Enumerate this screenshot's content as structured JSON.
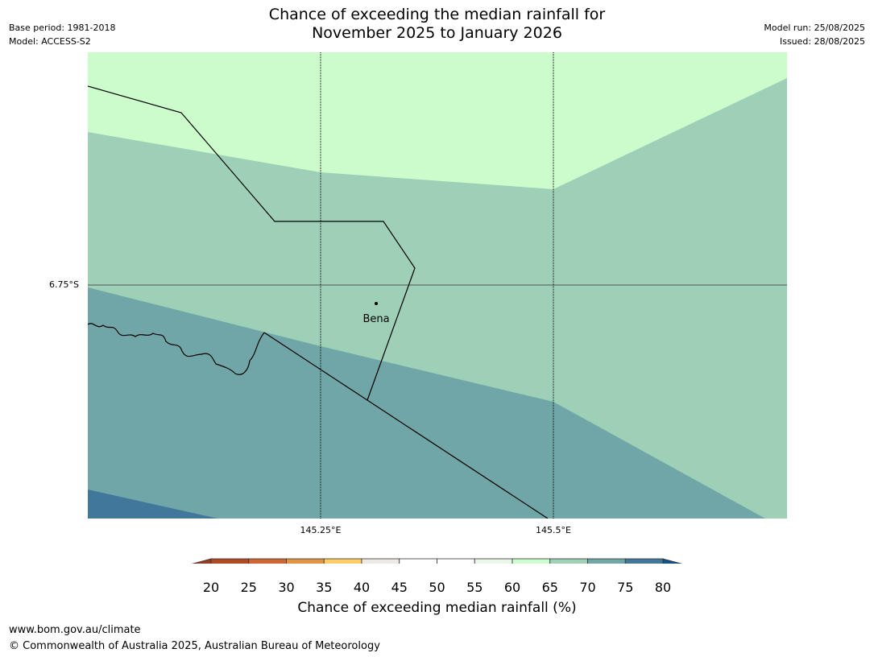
{
  "title": {
    "line1": "Chance of exceeding the median rainfall for",
    "line2": "November 2025 to January 2026"
  },
  "meta_left": {
    "base_period": "Base period: 1981-2018",
    "model": "Model: ACCESS-S2"
  },
  "meta_right": {
    "model_run": "Model run: 25/08/2025",
    "issued": "Issued: 28/08/2025"
  },
  "map": {
    "lat_label": "6.75°S",
    "lon_labels": [
      "145.25°E",
      "145.5°E"
    ],
    "place": {
      "name": "Bena",
      "lat": "6.77°S",
      "lon": "145.31°E"
    },
    "zones": [
      {
        "range": "60-65",
        "color": "#ccfccc"
      },
      {
        "range": "65-70",
        "color": "#9ed0b8"
      },
      {
        "range": "70-75",
        "color": "#70a6a8"
      },
      {
        "range": "75-80",
        "color": "#41779a"
      }
    ]
  },
  "colorbar": {
    "ticks": [
      "20",
      "25",
      "30",
      "35",
      "40",
      "45",
      "50",
      "55",
      "60",
      "65",
      "70",
      "75",
      "80"
    ],
    "colors": [
      "#b04a26",
      "#cd6633",
      "#e29545",
      "#fecd67",
      "#ede9e4",
      "#ffffff",
      "#ffffff",
      "#e9f6e9",
      "#ccfccc",
      "#9ed0b8",
      "#70a6a8",
      "#41779a"
    ],
    "under_color": "#9a3c23",
    "over_color": "#145188",
    "label": "Chance of exceeding median rainfall (%)"
  },
  "footer": {
    "url": "www.bom.gov.au/climate",
    "copyright": "© Commonwealth of Australia 2025, Australian Bureau of Meteorology"
  }
}
